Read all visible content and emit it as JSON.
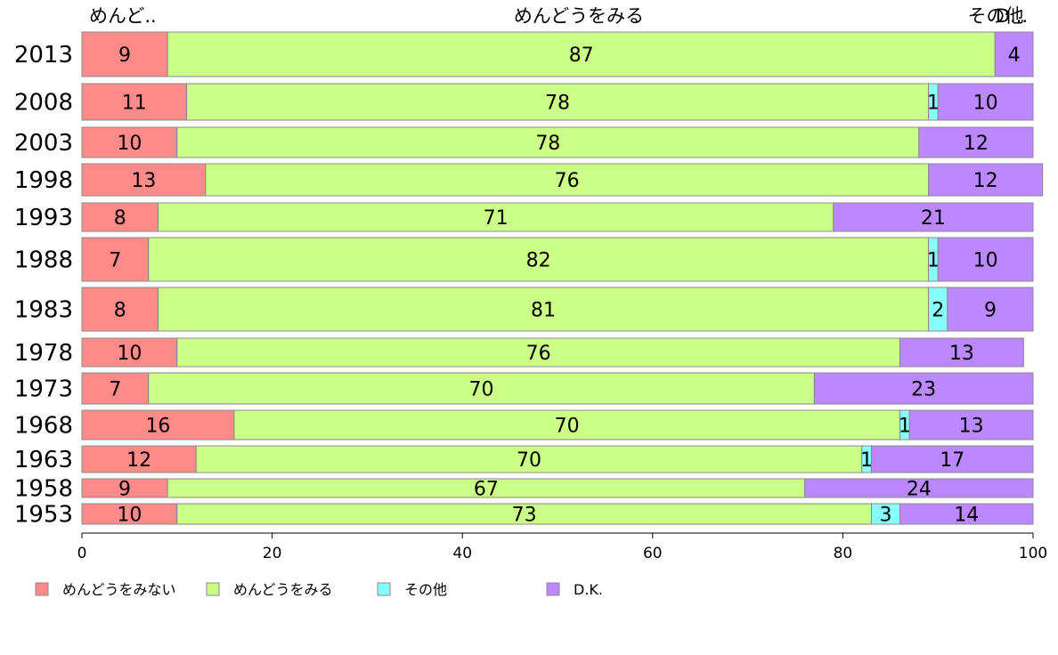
{
  "chart_data": {
    "type": "bar",
    "orientation": "horizontal",
    "stacked": true,
    "categories": [
      "2013",
      "2008",
      "2003",
      "1998",
      "1993",
      "1988",
      "1983",
      "1978",
      "1973",
      "1968",
      "1963",
      "1958",
      "1953"
    ],
    "series": [
      {
        "name": "めんどうをみない",
        "color": "#ff8a8a",
        "values": [
          9,
          11,
          10,
          13,
          8,
          7,
          8,
          10,
          7,
          16,
          12,
          9,
          10
        ]
      },
      {
        "name": "めんどうをみる",
        "color": "#ccff88",
        "values": [
          87,
          78,
          78,
          76,
          71,
          82,
          81,
          76,
          70,
          70,
          70,
          67,
          73
        ]
      },
      {
        "name": "その他",
        "color": "#88ffff",
        "values": [
          0,
          1,
          0,
          0,
          0,
          1,
          2,
          0,
          0,
          1,
          1,
          0,
          3
        ]
      },
      {
        "name": "D.K.",
        "color": "#bb88ff",
        "values": [
          4,
          10,
          12,
          12,
          21,
          10,
          9,
          13,
          23,
          13,
          17,
          24,
          14
        ]
      }
    ],
    "top_labels": [
      "めんど..",
      "めんどうをみる",
      "その他",
      "D..."
    ],
    "xlim": [
      0,
      100
    ],
    "x_ticks": [
      "0",
      "20",
      "40",
      "60",
      "80",
      "100"
    ],
    "grid": false,
    "legend_position": "bottom-left"
  }
}
